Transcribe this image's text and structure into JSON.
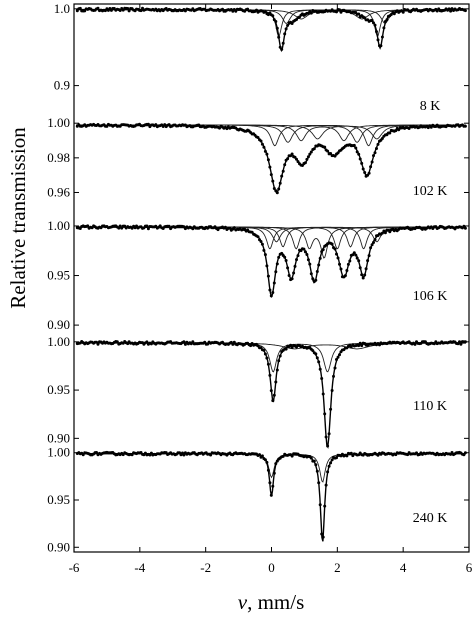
{
  "chart_data": {
    "type": "scatter",
    "x_axis": {
      "range": [
        -6,
        6
      ],
      "ticks": [
        "-6",
        "-4",
        "-2",
        "0",
        "2",
        "4",
        "6"
      ],
      "label_var": "v",
      "label_unit": ", mm/s"
    },
    "ylabel": "Relative transmission",
    "panels": [
      {
        "label": "8 K",
        "ylim": [
          0.863,
          1.005
        ],
        "ticks": [
          {
            "value": 1.0,
            "text": "1.0"
          },
          {
            "value": 0.9,
            "text": "0.9"
          }
        ],
        "baseline": 0.999,
        "total_dips": [
          {
            "center": 0.3,
            "depth": 0.049,
            "width": 0.22
          },
          {
            "center": 0.65,
            "depth": 0.012,
            "width": 0.5
          },
          {
            "center": 2.9,
            "depth": 0.01,
            "width": 0.5
          },
          {
            "center": 3.3,
            "depth": 0.047,
            "width": 0.22
          }
        ],
        "components": [
          [
            {
              "center": 0.22,
              "depth": 0.035,
              "width": 0.22
            },
            {
              "center": 3.22,
              "depth": 0.035,
              "width": 0.22
            }
          ],
          [
            {
              "center": 0.45,
              "depth": 0.018,
              "width": 0.3
            },
            {
              "center": 3.45,
              "depth": 0.018,
              "width": 0.3
            }
          ],
          [
            {
              "center": 0.9,
              "depth": 0.012,
              "width": 0.5
            },
            {
              "center": 2.75,
              "depth": 0.012,
              "width": 0.5
            }
          ]
        ]
      },
      {
        "label": "102 K",
        "ylim": [
          0.947,
          1.003
        ],
        "ticks": [
          {
            "value": 1.0,
            "text": "1.00"
          },
          {
            "value": 0.98,
            "text": "0.98"
          },
          {
            "value": 0.96,
            "text": "0.96"
          }
        ],
        "baseline": 0.999,
        "total_dips": [
          {
            "center": 0.15,
            "depth": 0.036,
            "width": 0.5
          },
          {
            "center": 0.95,
            "depth": 0.018,
            "width": 0.6
          },
          {
            "center": 1.9,
            "depth": 0.014,
            "width": 0.7
          },
          {
            "center": 2.9,
            "depth": 0.027,
            "width": 0.5
          }
        ],
        "components": [
          [
            {
              "center": 0.1,
              "depth": 0.012,
              "width": 0.3
            },
            {
              "center": 2.95,
              "depth": 0.012,
              "width": 0.3
            }
          ],
          [
            {
              "center": 0.5,
              "depth": 0.01,
              "width": 0.35
            },
            {
              "center": 2.6,
              "depth": 0.01,
              "width": 0.35
            }
          ],
          [
            {
              "center": 0.9,
              "depth": 0.009,
              "width": 0.35
            },
            {
              "center": 2.2,
              "depth": 0.009,
              "width": 0.35
            }
          ],
          [
            {
              "center": 1.4,
              "depth": 0.008,
              "width": 0.4
            },
            {
              "center": 3.2,
              "depth": 0.008,
              "width": 0.4
            }
          ]
        ]
      },
      {
        "label": "106 K",
        "ylim": [
          0.888,
          1.004
        ],
        "ticks": [
          {
            "value": 1.0,
            "text": "1.00"
          },
          {
            "value": 0.95,
            "text": "0.95"
          },
          {
            "value": 0.9,
            "text": "0.90"
          }
        ],
        "baseline": 0.999,
        "total_dips": [
          {
            "center": 0.0,
            "depth": 0.065,
            "width": 0.3
          },
          {
            "center": 0.6,
            "depth": 0.045,
            "width": 0.35
          },
          {
            "center": 1.3,
            "depth": 0.05,
            "width": 0.35
          },
          {
            "center": 2.2,
            "depth": 0.045,
            "width": 0.4
          },
          {
            "center": 2.8,
            "depth": 0.045,
            "width": 0.35
          }
        ],
        "components": [
          [
            {
              "center": -0.05,
              "depth": 0.022,
              "width": 0.25
            },
            {
              "center": 2.0,
              "depth": 0.022,
              "width": 0.25
            }
          ],
          [
            {
              "center": 0.35,
              "depth": 0.02,
              "width": 0.25
            },
            {
              "center": 2.4,
              "depth": 0.02,
              "width": 0.25
            }
          ],
          [
            {
              "center": 0.75,
              "depth": 0.022,
              "width": 0.25
            },
            {
              "center": 2.8,
              "depth": 0.022,
              "width": 0.25
            }
          ],
          [
            {
              "center": 1.15,
              "depth": 0.02,
              "width": 0.25
            },
            {
              "center": 1.6,
              "depth": 0.03,
              "width": 0.25
            }
          ],
          [
            {
              "center": 0.15,
              "depth": 0.015,
              "width": 0.3
            },
            {
              "center": 3.2,
              "depth": 0.015,
              "width": 0.3
            }
          ]
        ]
      },
      {
        "label": "110 K",
        "ylim": [
          0.89,
          1.005
        ],
        "ticks": [
          {
            "value": 1.0,
            "text": "1.00"
          },
          {
            "value": 0.95,
            "text": "0.95"
          },
          {
            "value": 0.9,
            "text": "0.90"
          }
        ],
        "baseline": 0.999,
        "total_dips": [
          {
            "center": 0.05,
            "depth": 0.06,
            "width": 0.22
          },
          {
            "center": 1.7,
            "depth": 0.108,
            "width": 0.25
          }
        ],
        "components": [
          [
            {
              "center": 0.05,
              "depth": 0.03,
              "width": 0.25
            },
            {
              "center": 1.7,
              "depth": 0.03,
              "width": 0.28
            }
          ],
          [
            {
              "center": 0.7,
              "depth": 0.006,
              "width": 0.9
            },
            {
              "center": 2.6,
              "depth": 0.006,
              "width": 0.9
            }
          ]
        ]
      },
      {
        "label": "240 K",
        "ylim": [
          0.895,
          1.005
        ],
        "ticks": [
          {
            "value": 1.0,
            "text": "1.00"
          },
          {
            "value": 0.95,
            "text": "0.95"
          },
          {
            "value": 0.9,
            "text": "0.90"
          }
        ],
        "baseline": 0.999,
        "total_dips": [
          {
            "center": 0.0,
            "depth": 0.045,
            "width": 0.15
          },
          {
            "center": 1.55,
            "depth": 0.094,
            "width": 0.16
          }
        ],
        "components": [
          [
            {
              "center": 0.0,
              "depth": 0.025,
              "width": 0.2
            },
            {
              "center": 1.55,
              "depth": 0.03,
              "width": 0.2
            }
          ]
        ]
      }
    ]
  }
}
